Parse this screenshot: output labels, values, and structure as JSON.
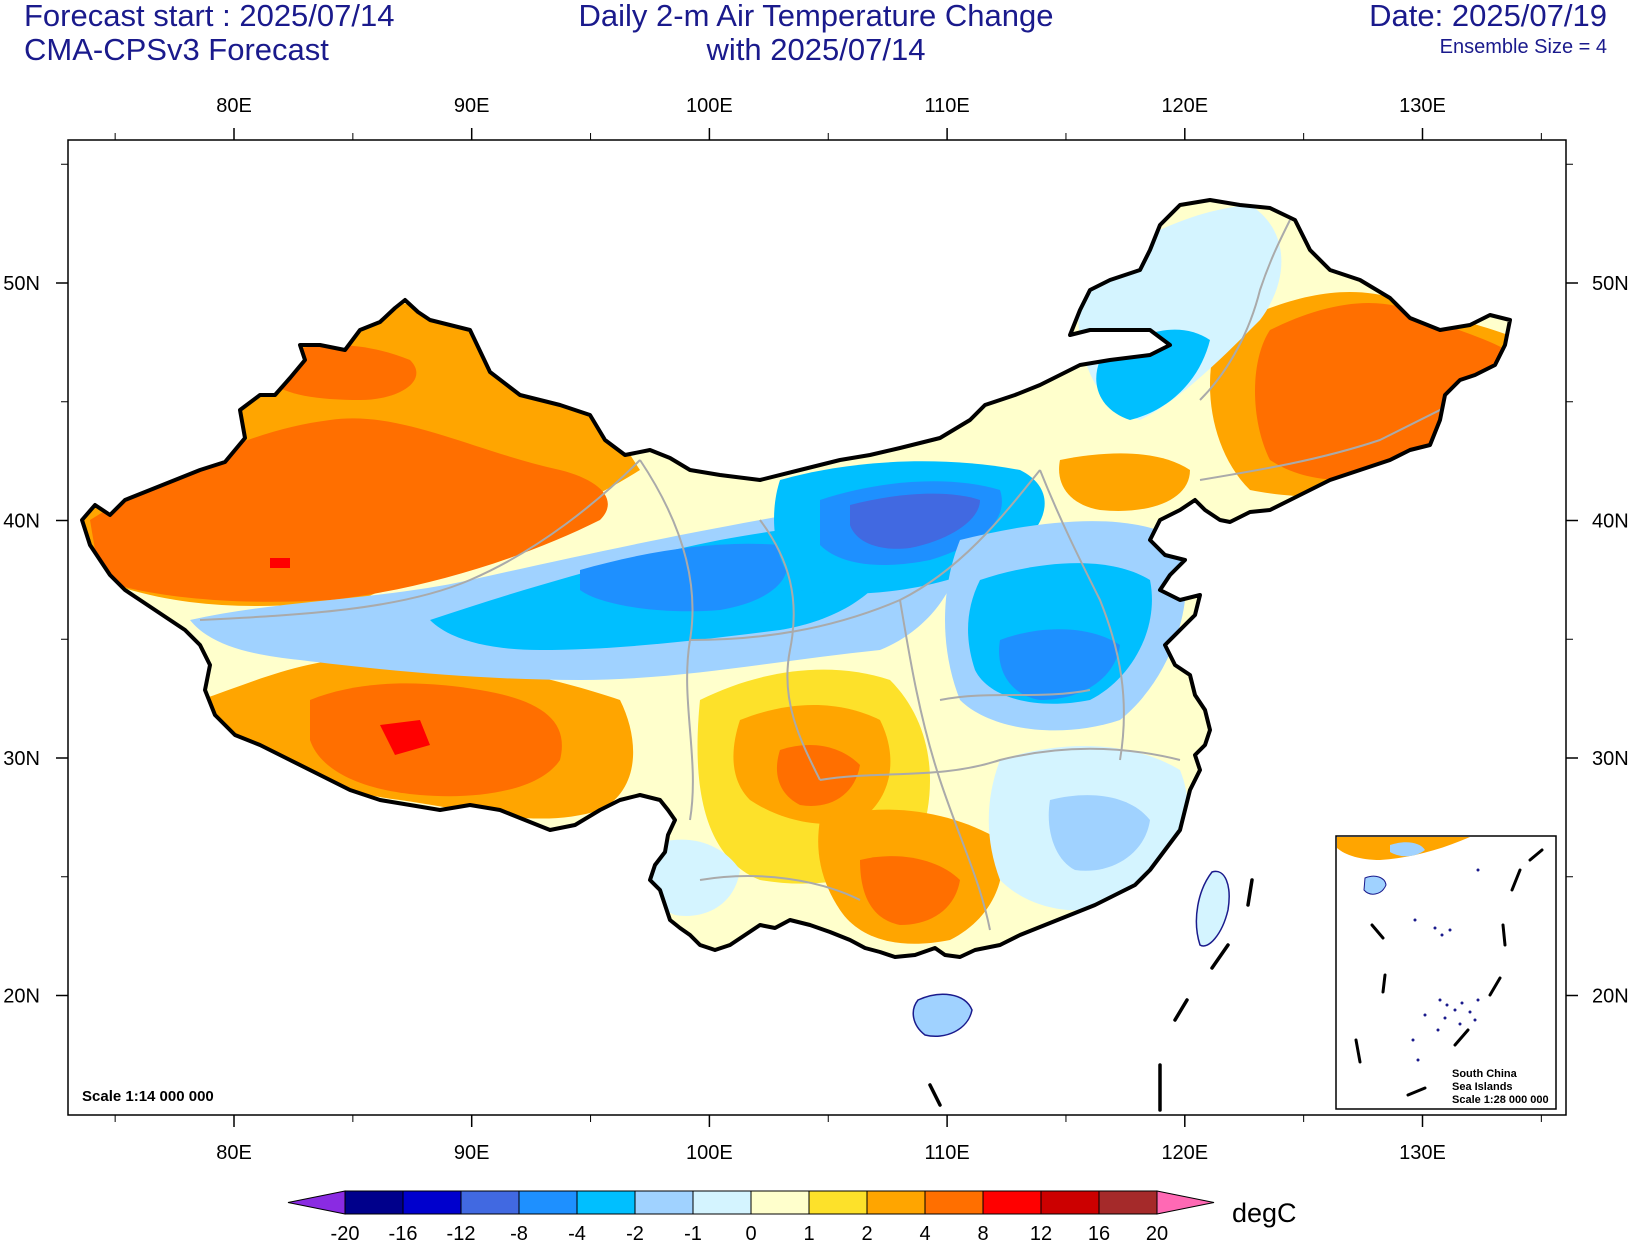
{
  "header": {
    "forecast_start": "Forecast start : 2025/07/14",
    "model": "CMA-CPSv3 Forecast",
    "title_line1": "Daily 2-m Air Temperature Change",
    "title_line2": "with 2025/07/14",
    "date": "Date: 2025/07/19",
    "ensemble": "Ensemble Size = 4"
  },
  "map": {
    "lon_labels": [
      "80E",
      "90E",
      "100E",
      "110E",
      "120E",
      "130E"
    ],
    "lat_labels": [
      "50N",
      "40N",
      "30N",
      "20N"
    ],
    "scale_main": "Scale 1:14 000 000",
    "inset_label_1": "South China",
    "inset_label_2": "Sea Islands",
    "inset_scale": "Scale 1:28 000 000",
    "border_color": "#000000",
    "province_color": "#aaaaaa"
  },
  "colorbar": {
    "unit": "degC",
    "tick_labels": [
      "-20",
      "-16",
      "-12",
      "-8",
      "-4",
      "-2",
      "-1",
      "0",
      "1",
      "2",
      "4",
      "8",
      "12",
      "16",
      "20"
    ],
    "low_color": "#8a2be2",
    "high_color": "#ff69b4",
    "colors": [
      "#00008b",
      "#0000cd",
      "#4169e1",
      "#1e90ff",
      "#00bfff",
      "#a0d2ff",
      "#d4f4ff",
      "#ffffcc",
      "#fde12a",
      "#ffa500",
      "#ff6f00",
      "#ff0000",
      "#cc0000",
      "#a52a2a"
    ]
  }
}
